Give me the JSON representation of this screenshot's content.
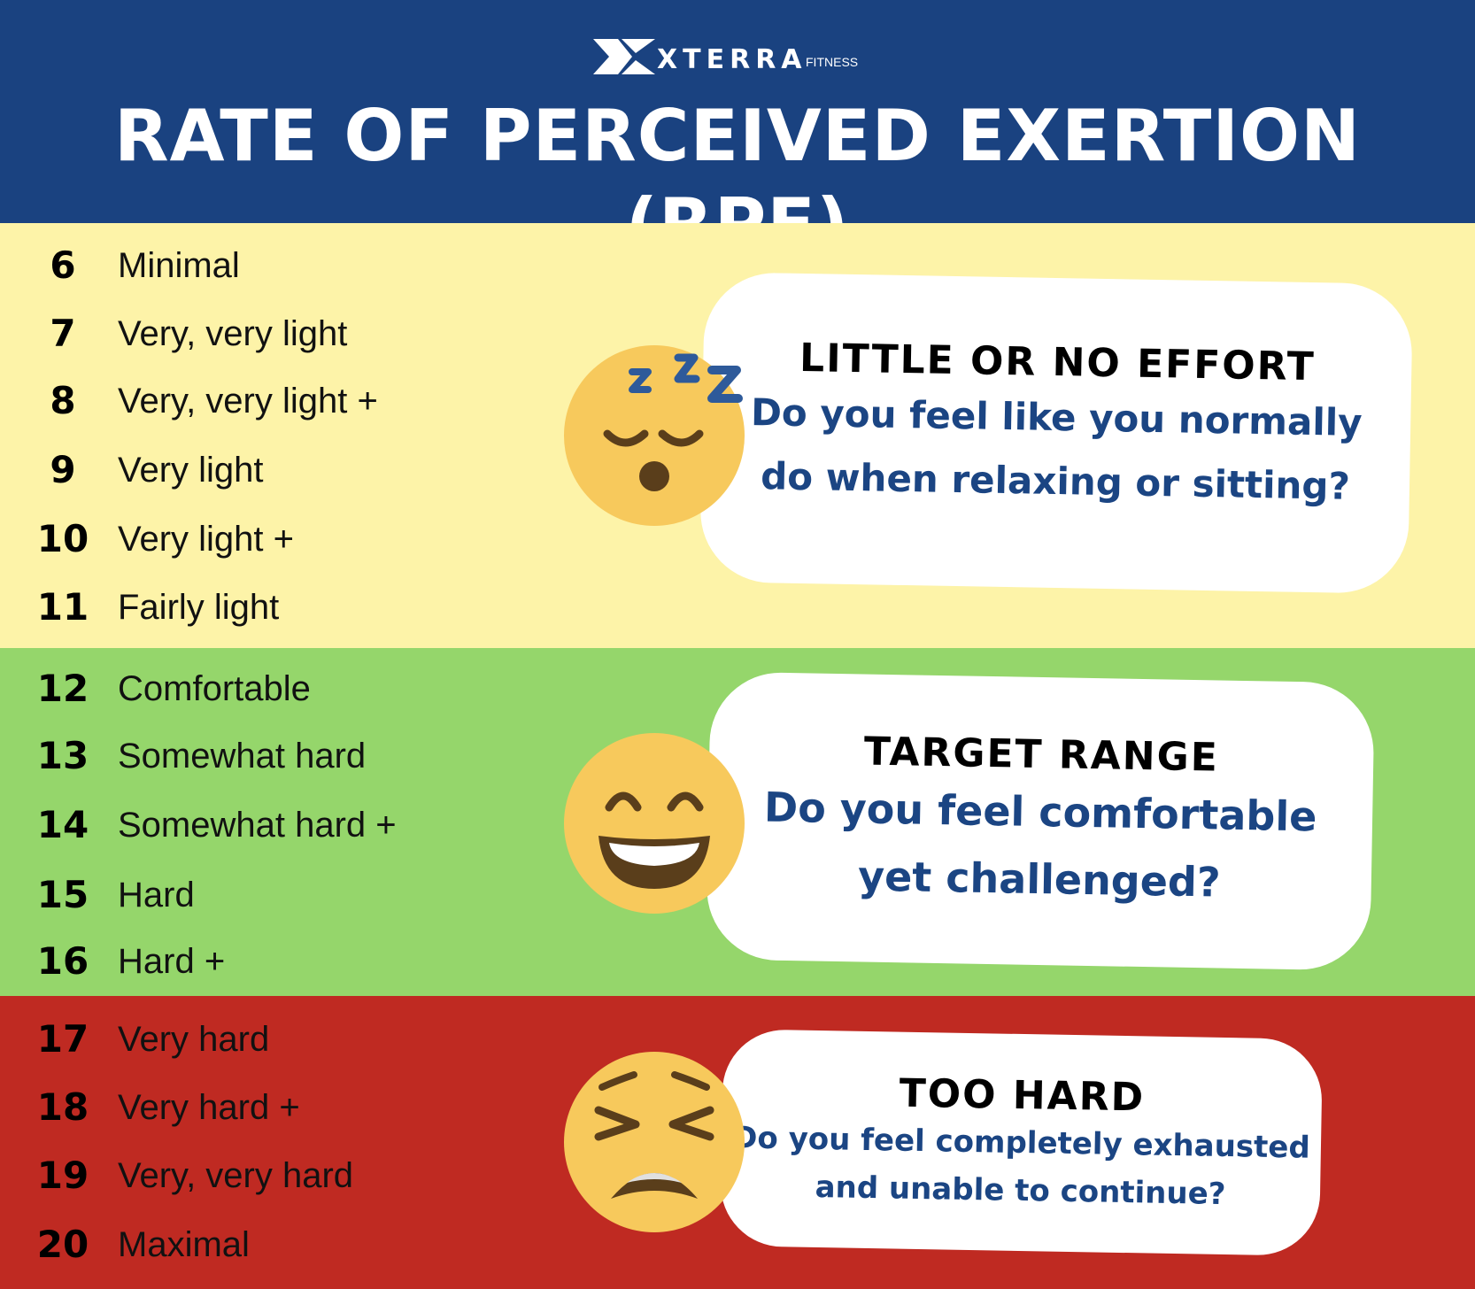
{
  "header": {
    "brand": "XTERRA",
    "brand_sub": "FITNESS",
    "title": "RATE OF PERCEIVED EXERTION (RPE)"
  },
  "scale": {
    "rows": [
      {
        "value": "6",
        "label": "Minimal"
      },
      {
        "value": "7",
        "label": "Very, very light"
      },
      {
        "value": "8",
        "label": "Very, very light +"
      },
      {
        "value": "9",
        "label": "Very light"
      },
      {
        "value": "10",
        "label": "Very light +"
      },
      {
        "value": "11",
        "label": "Fairly light"
      },
      {
        "value": "12",
        "label": "Comfortable"
      },
      {
        "value": "13",
        "label": "Somewhat hard"
      },
      {
        "value": "14",
        "label": "Somewhat hard +"
      },
      {
        "value": "15",
        "label": "Hard"
      },
      {
        "value": "16",
        "label": "Hard +"
      },
      {
        "value": "17",
        "label": "Very hard"
      },
      {
        "value": "18",
        "label": "Very hard +"
      },
      {
        "value": "19",
        "label": "Very, very hard"
      },
      {
        "value": "20",
        "label": "Maximal"
      }
    ]
  },
  "zones": {
    "low": {
      "heading": "LITTLE OR NO EFFORT",
      "question_line1": "Do you feel like you normally",
      "question_line2": "do when relaxing or sitting?",
      "icon": "sleeping-face-icon",
      "color": "#fdf3a8"
    },
    "target": {
      "heading": "TARGET RANGE",
      "question_line1": "Do you feel comfortable",
      "question_line2": "yet challenged?",
      "icon": "grinning-face-icon",
      "color": "#95d66b"
    },
    "high": {
      "heading": "TOO HARD",
      "question_line1": "Do you feel completely exhausted",
      "question_line2": "and unable to continue?",
      "icon": "tired-face-icon",
      "color": "#bf2a22"
    }
  }
}
